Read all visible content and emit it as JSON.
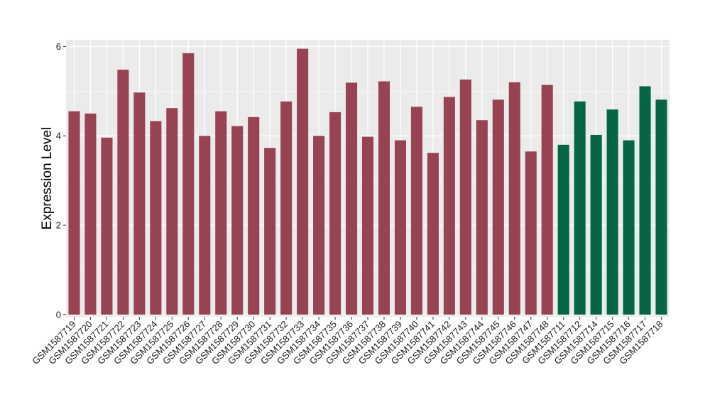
{
  "chart_data": {
    "type": "bar",
    "ylabel": "Expression Level",
    "xlabel": "",
    "ylim": [
      -0.05,
      6.15
    ],
    "yticks": [
      0,
      2,
      4,
      6
    ],
    "grid": true,
    "categories": [
      "GSM1587719",
      "GSM1587720",
      "GSM1587721",
      "GSM1587722",
      "GSM1587723",
      "GSM1587724",
      "GSM1587725",
      "GSM1587726",
      "GSM1587727",
      "GSM1587728",
      "GSM1587729",
      "GSM1587730",
      "GSM1587731",
      "GSM1587732",
      "GSM1587733",
      "GSM1587734",
      "GSM1587735",
      "GSM1587736",
      "GSM1587737",
      "GSM1587738",
      "GSM1587739",
      "GSM1587740",
      "GSM1587741",
      "GSM1587742",
      "GSM1587743",
      "GSM1587744",
      "GSM1587745",
      "GSM1587746",
      "GSM1587747",
      "GSM1587748",
      "GSM1587711",
      "GSM1587712",
      "GSM1587714",
      "GSM1587715",
      "GSM1587716",
      "GSM1587717",
      "GSM1587718"
    ],
    "values": [
      4.55,
      4.5,
      3.96,
      5.48,
      4.97,
      4.33,
      4.62,
      5.85,
      4.0,
      4.55,
      4.22,
      4.42,
      3.73,
      4.77,
      5.95,
      4.0,
      4.53,
      5.19,
      3.98,
      5.22,
      3.9,
      4.65,
      3.62,
      4.87,
      5.26,
      4.35,
      4.81,
      5.2,
      3.65,
      5.14,
      3.8,
      4.77,
      4.02,
      4.59,
      3.9,
      5.11,
      4.81
    ],
    "bar_colors": [
      "#984352",
      "#984352",
      "#984352",
      "#984352",
      "#984352",
      "#984352",
      "#984352",
      "#984352",
      "#984352",
      "#984352",
      "#984352",
      "#984352",
      "#984352",
      "#984352",
      "#984352",
      "#984352",
      "#984352",
      "#984352",
      "#984352",
      "#984352",
      "#984352",
      "#984352",
      "#984352",
      "#984352",
      "#984352",
      "#984352",
      "#984352",
      "#984352",
      "#984352",
      "#984352",
      "#056646",
      "#056646",
      "#056646",
      "#056646",
      "#056646",
      "#056646",
      "#056646"
    ],
    "panel_background": "#ebebeb",
    "gridline_color": "#ffffff"
  }
}
